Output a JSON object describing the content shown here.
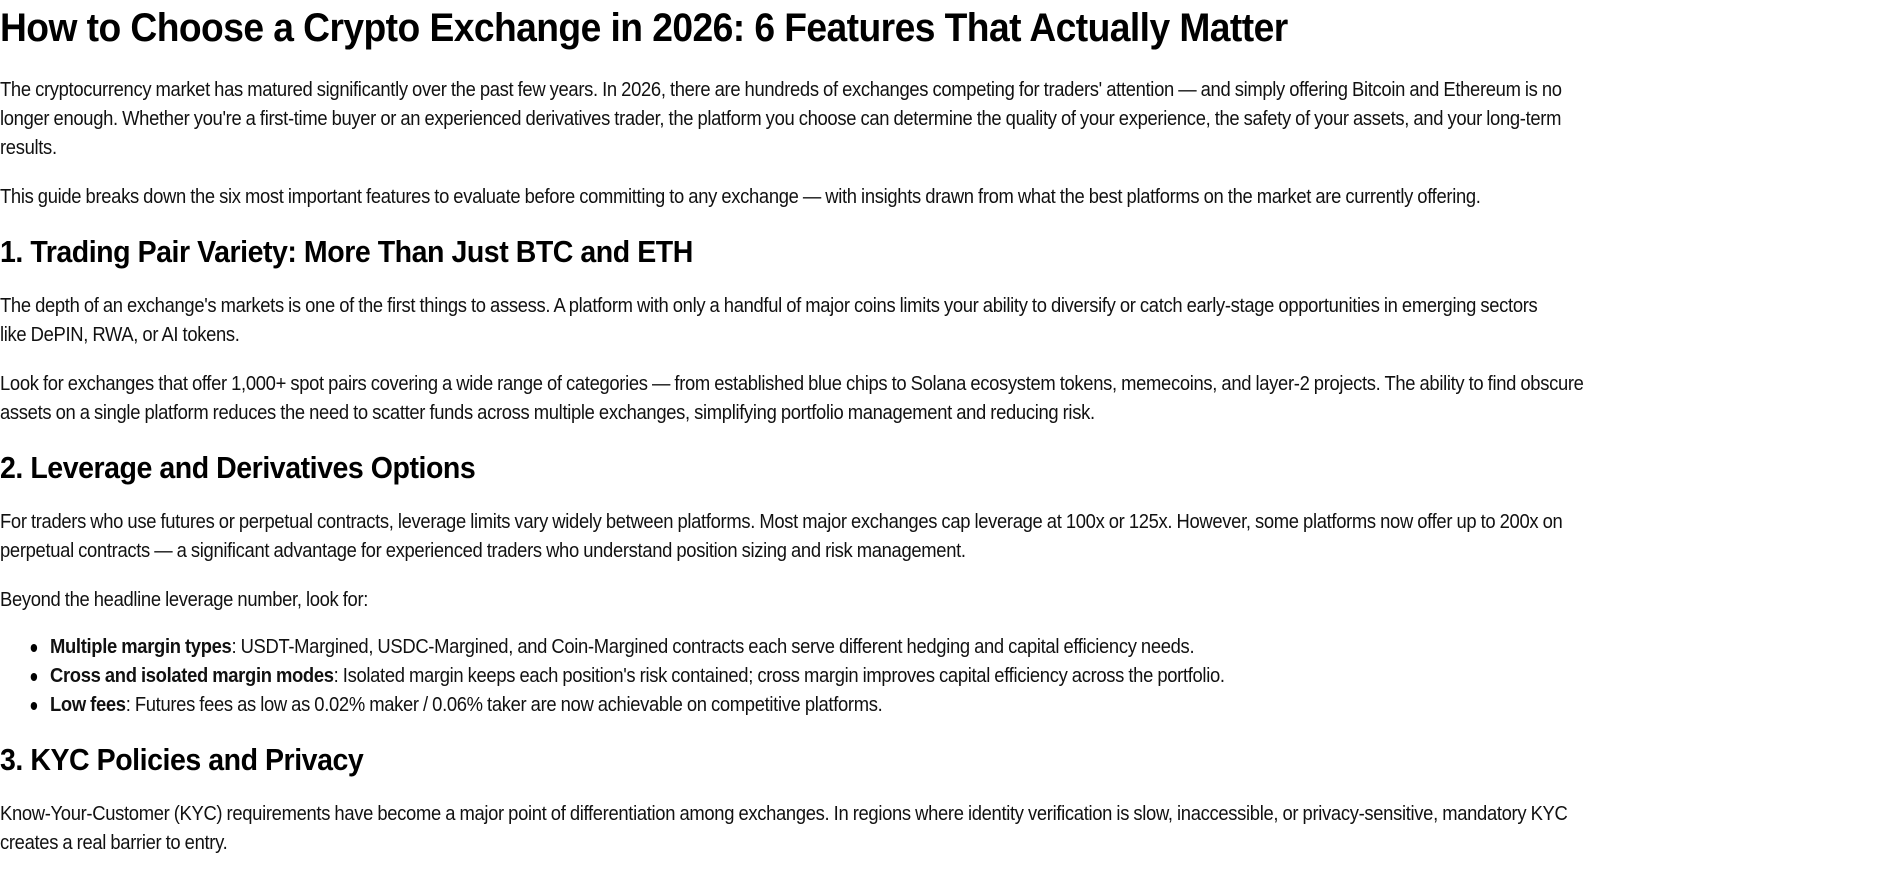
{
  "article": {
    "title": "How to Choose a Crypto Exchange in 2026: 6 Features That Actually Matter",
    "intro": [
      {
        "lines": [
          "The cryptocurrency market has matured significantly over the past few years. In 2026, there are hundreds of exchanges competing for traders' attention — and simply offering Bitcoin and Ethereum is no",
          "longer enough. Whether you're a first-time buyer or an experienced derivatives trader, the platform you choose can determine the quality of your experience, the safety of your assets, and your long-term",
          "results."
        ]
      },
      {
        "lines": [
          "This guide breaks down the six most important features to evaluate before committing to any exchange — with insights drawn from what the best platforms on the market are currently offering."
        ]
      }
    ],
    "sections": [
      {
        "heading": "1. Trading Pair Variety: More Than Just BTC and ETH",
        "paragraphs": [
          {
            "lines": [
              "The depth of an exchange's markets is one of the first things to assess. A platform with only a handful of major coins limits your ability to diversify or catch early-stage opportunities in emerging sectors",
              "like DePIN, RWA, or AI tokens."
            ]
          },
          {
            "lines": [
              "Look for exchanges that offer 1,000+ spot pairs covering a wide range of categories — from established blue chips to Solana ecosystem tokens, memecoins, and layer-2 projects. The ability to find obscure",
              "assets on a single platform reduces the need to scatter funds across multiple exchanges, simplifying portfolio management and reducing risk."
            ]
          }
        ]
      },
      {
        "heading": "2. Leverage and Derivatives Options",
        "paragraphs": [
          {
            "lines": [
              "For traders who use futures or perpetual contracts, leverage limits vary widely between platforms. Most major exchanges cap leverage at 100x or 125x. However, some platforms now offer up to 200x on",
              "perpetual contracts — a significant advantage for experienced traders who understand position sizing and risk management."
            ]
          },
          {
            "lines": [
              "Beyond the headline leverage number, look for:"
            ]
          }
        ],
        "bullets": [
          {
            "label": "Multiple margin types",
            "text": ": USDT-Margined, USDC-Margined, and Coin-Margined contracts each serve different hedging and capital efficiency needs."
          },
          {
            "label": "Cross and isolated margin modes",
            "text": ": Isolated margin keeps each position's risk contained; cross margin improves capital efficiency across the portfolio."
          },
          {
            "label": "Low fees",
            "text": ": Futures fees as low as 0.02% maker / 0.06% taker are now achievable on competitive platforms."
          }
        ]
      },
      {
        "heading": "3. KYC Policies and Privacy",
        "paragraphs": [
          {
            "lines": [
              "Know-Your-Customer (KYC) requirements have become a major point of differentiation among exchanges. In regions where identity verification is slow, inaccessible, or privacy-sensitive, mandatory KYC",
              "creates a real barrier to entry."
            ]
          }
        ]
      }
    ]
  }
}
